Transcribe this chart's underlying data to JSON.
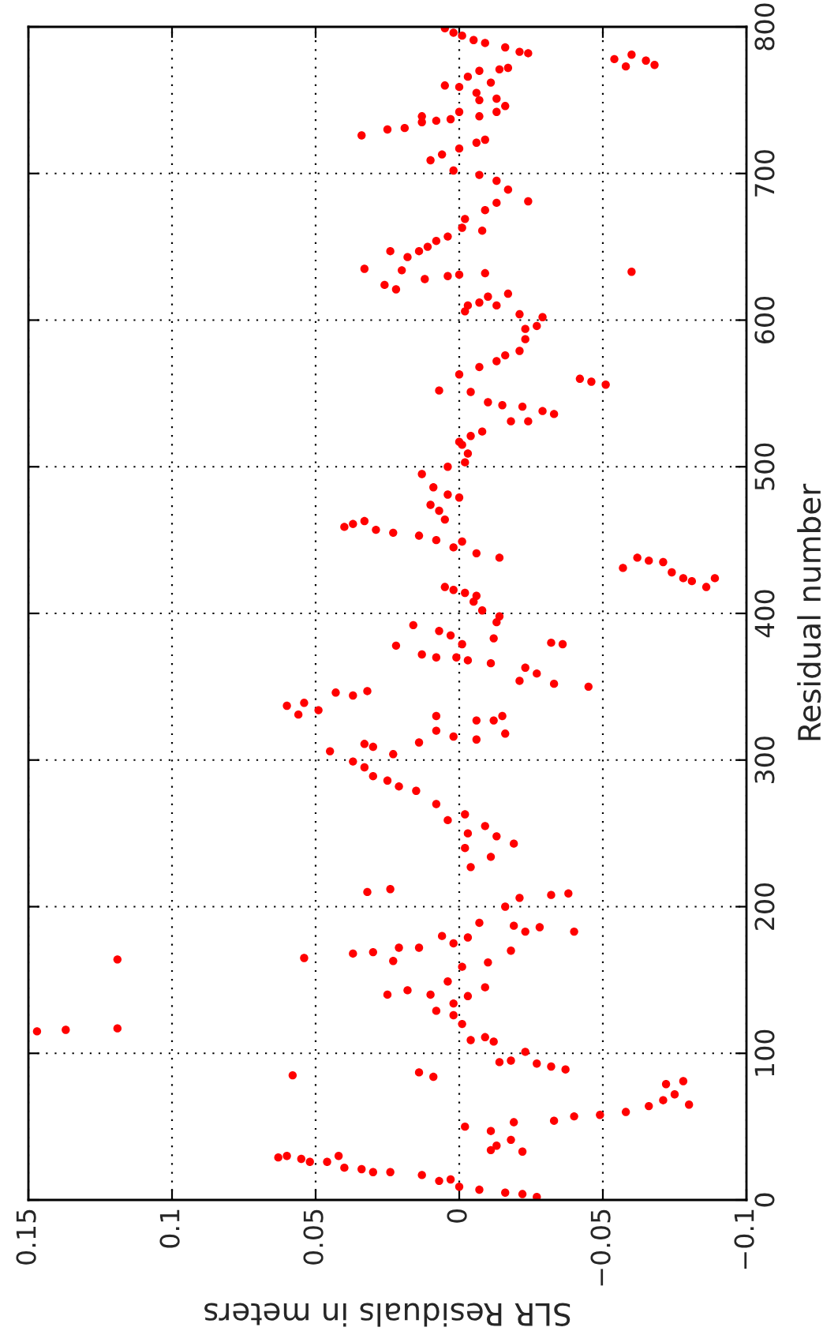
{
  "chart_data": {
    "type": "scatter",
    "xlabel": "SLR Residuals in meters",
    "ylabel": "Residual number",
    "xlim": [
      0.15,
      -0.1
    ],
    "ylim": [
      0,
      800
    ],
    "xticks": [
      0.15,
      0.1,
      0.05,
      0,
      {
        "value": -0.05,
        "label": "−0.05"
      },
      {
        "value": -0.1,
        "label": "−0.1"
      }
    ],
    "yticks": [
      0,
      100,
      200,
      300,
      400,
      500,
      600,
      700,
      800
    ],
    "grid": true,
    "marker": "circle",
    "legend": false,
    "series": [
      {
        "color": "#ff0000",
        "x": [
          -0.027,
          -0.022,
          -0.016,
          -0.007,
          0,
          0.003,
          0.007,
          0.013,
          0.024,
          0.03,
          0.034,
          0.04,
          0.042,
          0.046,
          0.052,
          0.055,
          0.06,
          0.063,
          -0.002,
          -0.011,
          -0.018,
          -0.022,
          -0.019,
          -0.013,
          -0.011,
          -0.033,
          -0.04,
          -0.049,
          -0.058,
          -0.066,
          -0.071,
          -0.075,
          -0.08,
          -0.078,
          -0.072,
          -0.037,
          -0.032,
          -0.027,
          -0.023,
          -0.018,
          -0.014,
          -0.012,
          -0.009,
          -0.004,
          -0.001,
          0.002,
          0.002,
          0.008,
          0.01,
          0.018,
          0.025,
          -0.003,
          -0.009,
          0.004,
          -0.001,
          -0.01,
          -0.018,
          0.002,
          -0.003,
          0.006,
          0.014,
          0.021,
          0.023,
          0.03,
          0.037,
          0.054,
          0.119,
          0.119,
          0.137,
          0.147,
          0.058,
          0.014,
          0.009,
          -0.007,
          -0.019,
          -0.023,
          -0.028,
          -0.04,
          -0.016,
          -0.021,
          -0.032,
          -0.038,
          0.032,
          0.024,
          -0.004,
          -0.011,
          -0.002,
          -0.019,
          -0.013,
          -0.009,
          -0.003,
          0.004,
          -0.002,
          0.008,
          0.015,
          0.021,
          0.025,
          0.03,
          0.033,
          0.037,
          0.03,
          0.023,
          0.033,
          0.045,
          0.014,
          0.008,
          0.002,
          -0.006,
          -0.006,
          -0.012,
          -0.015,
          -0.016,
          0.008,
          0.032,
          0.037,
          0.043,
          0.049,
          0.054,
          0.06,
          0.056,
          -0.045,
          -0.033,
          -0.027,
          -0.021,
          -0.036,
          -0.032,
          -0.023,
          -0.011,
          -0.003,
          0.001,
          -0.001,
          0.008,
          0.016,
          0.007,
          0.003,
          0.022,
          0.013,
          -0.012,
          -0.013,
          -0.014,
          -0.008,
          -0.005,
          -0.006,
          -0.002,
          0.002,
          0.005,
          -0.014,
          -0.006,
          -0.001,
          0.002,
          0.008,
          0.014,
          0.023,
          0.029,
          0.033,
          0.037,
          0.04,
          -0.057,
          -0.062,
          -0.066,
          -0.071,
          -0.074,
          -0.078,
          -0.081,
          -0.086,
          -0.089,
          0.007,
          0.004,
          0.009,
          0.013,
          0.0,
          0.005,
          0.01,
          0.004,
          -0.002,
          -0.003,
          -0.001,
          0.0,
          -0.004,
          -0.008,
          -0.01,
          -0.015,
          -0.022,
          -0.029,
          -0.033,
          -0.024,
          -0.018,
          -0.004,
          0.007,
          -0.042,
          -0.046,
          -0.051,
          0.0,
          -0.007,
          -0.013,
          -0.016,
          -0.021,
          -0.023,
          -0.023,
          -0.027,
          -0.029,
          -0.021,
          -0.013,
          -0.007,
          -0.003,
          -0.002,
          -0.01,
          -0.017,
          -0.06,
          -0.009,
          0.0,
          0.004,
          0.012,
          0.022,
          0.026,
          0.02,
          0.024,
          0.033,
          0.018,
          0.014,
          0.011,
          0.008,
          0.004,
          -0.001,
          -0.008,
          -0.002,
          -0.009,
          -0.013,
          -0.017,
          -0.013,
          -0.007,
          -0.024,
          0.002,
          0.01,
          0.006,
          0.0,
          -0.006,
          -0.009,
          0.034,
          0.025,
          0.019,
          0.013,
          0.008,
          0.003,
          0.013,
          0.0,
          -0.007,
          -0.007,
          -0.013,
          -0.016,
          -0.013,
          -0.006,
          0.0,
          0.005,
          -0.011,
          -0.007,
          -0.003,
          -0.014,
          -0.017,
          -0.054,
          -0.058,
          -0.06,
          -0.065,
          -0.068,
          -0.024,
          -0.021,
          -0.016,
          -0.009,
          -0.005,
          -0.001,
          0.002,
          0.005
        ],
        "values": [
          2,
          4,
          5,
          7,
          9,
          14,
          13,
          17,
          19,
          19,
          21,
          22,
          30,
          26,
          26,
          28,
          30,
          29,
          50,
          47,
          41,
          33,
          53,
          37,
          34,
          54,
          57,
          58,
          60,
          64,
          68,
          72,
          65,
          81,
          79,
          89,
          91,
          93,
          101,
          95,
          94,
          108,
          111,
          109,
          120,
          126,
          134,
          129,
          140,
          143,
          140,
          139,
          145,
          149,
          159,
          162,
          170,
          175,
          179,
          180,
          172,
          172,
          163,
          169,
          168,
          165,
          164,
          117,
          116,
          115,
          85,
          87,
          84,
          189,
          187,
          183,
          186,
          183,
          200,
          206,
          208,
          209,
          210,
          212,
          227,
          234,
          240,
          243,
          248,
          255,
          250,
          259,
          263,
          270,
          279,
          282,
          286,
          289,
          295,
          299,
          309,
          304,
          311,
          306,
          312,
          320,
          316,
          314,
          327,
          327,
          330,
          318,
          330,
          347,
          344,
          346,
          334,
          339,
          337,
          331,
          350,
          352,
          359,
          354,
          379,
          380,
          363,
          366,
          368,
          370,
          379,
          370,
          392,
          388,
          385,
          378,
          372,
          383,
          394,
          398,
          402,
          408,
          412,
          414,
          416,
          418,
          438,
          441,
          449,
          445,
          450,
          453,
          455,
          457,
          463,
          461,
          459,
          431,
          438,
          436,
          435,
          428,
          424,
          422,
          418,
          424,
          470,
          481,
          486,
          495,
          479,
          464,
          474,
          500,
          503,
          509,
          515,
          517,
          521,
          524,
          544,
          542,
          541,
          538,
          536,
          531,
          531,
          551,
          552,
          560,
          558,
          556,
          563,
          568,
          572,
          576,
          579,
          587,
          594,
          596,
          602,
          604,
          610,
          612,
          610,
          606,
          616,
          618,
          633,
          632,
          631,
          630,
          628,
          621,
          624,
          634,
          647,
          635,
          643,
          647,
          650,
          654,
          657,
          663,
          661,
          669,
          675,
          680,
          689,
          695,
          699,
          681,
          702,
          709,
          713,
          717,
          721,
          723,
          726,
          730,
          731,
          735,
          736,
          737,
          739,
          742,
          739,
          750,
          742,
          746,
          751,
          755,
          759,
          760,
          762,
          770,
          766,
          771,
          772,
          778,
          773,
          781,
          777,
          774,
          782,
          783,
          786,
          789,
          791,
          794,
          796,
          799
        ]
      }
    ]
  }
}
